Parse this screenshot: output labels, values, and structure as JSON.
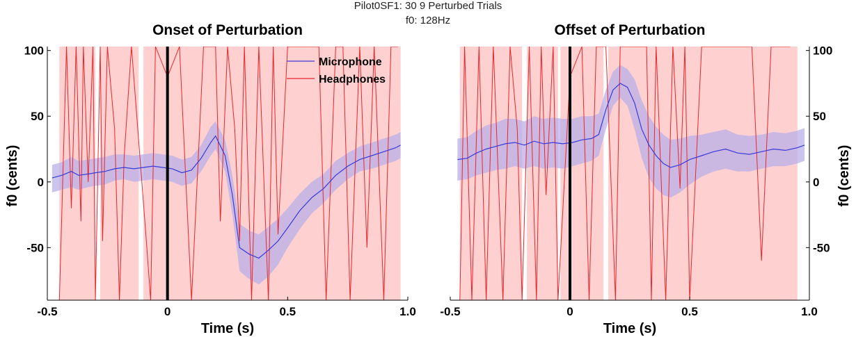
{
  "figure": {
    "suptitle_line1": "Pilot0SF1: 30   9 Perturbed Trials",
    "suptitle_line2": "f0: 128Hz"
  },
  "colors": {
    "headphones_band": "#ffd0d0",
    "headphones_line": "#e8262a",
    "microphone_band": "#b8b0ea",
    "microphone_line": "#3a3ad8",
    "perturbation_marker": "#000000"
  },
  "chart_data": [
    {
      "type": "line",
      "title": "Onset of Perturbation",
      "xlabel": "Time (s)",
      "ylabel": "f0 (cents)",
      "ylabel_side": "left",
      "xlim": [
        -0.5,
        1.0
      ],
      "ylim": [
        -90,
        103
      ],
      "xticks": [
        -0.5,
        0,
        0.5,
        1.0
      ],
      "xtick_labels": [
        "-0.5",
        "0",
        "0.5",
        "1.0"
      ],
      "yticks": [
        100,
        50,
        0,
        -50
      ],
      "ytick_labels": [
        "100",
        "50",
        "0",
        "-50"
      ],
      "marker_x": 0,
      "legend": {
        "position": "top-right",
        "entries": [
          "Microphone",
          "Headphones"
        ]
      },
      "microphone": {
        "name": "Microphone",
        "x": [
          -0.48,
          -0.44,
          -0.4,
          -0.37,
          -0.33,
          -0.3,
          -0.26,
          -0.22,
          -0.18,
          -0.14,
          -0.1,
          -0.06,
          -0.02,
          0.02,
          0.06,
          0.1,
          0.14,
          0.18,
          0.2,
          0.24,
          0.27,
          0.3,
          0.34,
          0.38,
          0.42,
          0.46,
          0.5,
          0.55,
          0.6,
          0.65,
          0.7,
          0.75,
          0.8,
          0.85,
          0.9,
          0.95,
          0.97
        ],
        "y": [
          3,
          5,
          8,
          5,
          6,
          7,
          8,
          10,
          11,
          10,
          11,
          12,
          11,
          10,
          7,
          9,
          18,
          30,
          35,
          20,
          -10,
          -50,
          -55,
          -58,
          -52,
          -45,
          -35,
          -22,
          -12,
          -5,
          5,
          12,
          17,
          20,
          23,
          26,
          28
        ],
        "lower": [
          -8,
          -6,
          -4,
          -6,
          -4,
          -3,
          -2,
          1,
          2,
          0,
          1,
          2,
          1,
          0,
          -3,
          -1,
          8,
          20,
          25,
          8,
          -25,
          -68,
          -74,
          -78,
          -72,
          -63,
          -50,
          -36,
          -24,
          -16,
          -6,
          2,
          8,
          10,
          13,
          16,
          18
        ],
        "upper": [
          13,
          15,
          19,
          16,
          17,
          18,
          19,
          21,
          21,
          20,
          21,
          22,
          21,
          20,
          17,
          19,
          28,
          42,
          46,
          32,
          5,
          -32,
          -37,
          -40,
          -34,
          -28,
          -20,
          -9,
          0,
          6,
          16,
          22,
          27,
          30,
          33,
          36,
          38
        ]
      },
      "headphones": {
        "name": "Headphones",
        "band_segments": [
          [
            -0.45,
            -0.3
          ],
          [
            -0.28,
            -0.12
          ],
          [
            -0.1,
            0.97
          ]
        ],
        "band_top": 103,
        "band_bottom": -90,
        "line_x": [
          -0.45,
          -0.42,
          -0.4,
          -0.38,
          -0.36,
          -0.35,
          -0.33,
          -0.31,
          -0.3,
          -0.28,
          -0.27,
          -0.25,
          -0.22,
          -0.2,
          -0.18,
          -0.15,
          -0.09,
          -0.07,
          -0.05,
          0.0,
          0.05,
          0.1,
          0.15,
          0.2,
          0.22,
          0.25,
          0.28,
          0.3,
          0.32,
          0.35,
          0.38,
          0.42,
          0.44,
          0.46,
          0.5,
          0.55,
          0.57,
          0.6,
          0.63,
          0.66,
          0.7,
          0.73,
          0.76,
          0.8,
          0.83,
          0.86,
          0.9,
          0.93,
          0.96
        ],
        "line_y": [
          -90,
          103,
          -20,
          103,
          -30,
          103,
          0,
          103,
          -90,
          103,
          -45,
          103,
          40,
          -90,
          20,
          103,
          -40,
          -90,
          103,
          80,
          103,
          -90,
          103,
          103,
          -30,
          103,
          40,
          -45,
          103,
          -90,
          103,
          -90,
          103,
          -40,
          103,
          103,
          103,
          103,
          103,
          -90,
          103,
          103,
          -90,
          103,
          -50,
          103,
          -90,
          103,
          103
        ]
      }
    },
    {
      "type": "line",
      "title": "Offset of Perturbation",
      "xlabel": "Time (s)",
      "ylabel": "f0 (cents)",
      "ylabel_side": "right",
      "xlim": [
        -0.5,
        1.0
      ],
      "ylim": [
        -90,
        103
      ],
      "xticks": [
        -0.5,
        0,
        0.5,
        1.0
      ],
      "xtick_labels": [
        "-0.5",
        "0",
        "0.5",
        "1.0"
      ],
      "yticks": [
        100,
        50,
        0,
        -50
      ],
      "ytick_labels": [
        "100",
        "50",
        "0",
        "-50"
      ],
      "marker_x": 0,
      "microphone": {
        "name": "Microphone",
        "x": [
          -0.47,
          -0.43,
          -0.39,
          -0.35,
          -0.31,
          -0.27,
          -0.23,
          -0.19,
          -0.15,
          -0.11,
          -0.07,
          -0.03,
          0.01,
          0.05,
          0.09,
          0.12,
          0.15,
          0.18,
          0.21,
          0.24,
          0.27,
          0.3,
          0.33,
          0.36,
          0.39,
          0.42,
          0.46,
          0.5,
          0.55,
          0.6,
          0.65,
          0.7,
          0.75,
          0.8,
          0.85,
          0.9,
          0.95,
          0.98
        ],
        "y": [
          17,
          18,
          22,
          25,
          27,
          29,
          30,
          28,
          31,
          29,
          30,
          29,
          30,
          32,
          33,
          36,
          55,
          70,
          75,
          72,
          60,
          40,
          28,
          20,
          14,
          11,
          13,
          17,
          20,
          23,
          25,
          22,
          21,
          23,
          25,
          24,
          26,
          28
        ],
        "lower": [
          1,
          2,
          5,
          7,
          9,
          10,
          12,
          10,
          12,
          10,
          11,
          10,
          12,
          14,
          16,
          20,
          40,
          58,
          64,
          58,
          40,
          18,
          3,
          -5,
          -10,
          -12,
          -8,
          -2,
          4,
          8,
          10,
          8,
          8,
          10,
          12,
          12,
          14,
          16
        ],
        "upper": [
          33,
          34,
          39,
          43,
          45,
          48,
          48,
          46,
          50,
          48,
          49,
          48,
          48,
          50,
          50,
          52,
          70,
          84,
          89,
          86,
          78,
          62,
          50,
          42,
          36,
          32,
          33,
          35,
          36,
          38,
          40,
          36,
          35,
          36,
          38,
          37,
          39,
          41
        ]
      },
      "headphones": {
        "name": "Headphones",
        "band_segments": [
          [
            -0.46,
            -0.2
          ],
          [
            -0.18,
            -0.05
          ],
          [
            -0.04,
            0.14
          ],
          [
            0.16,
            0.95
          ]
        ],
        "band_top": 103,
        "band_bottom": -90,
        "line_x": [
          -0.46,
          -0.44,
          -0.41,
          -0.38,
          -0.35,
          -0.32,
          -0.28,
          -0.25,
          -0.22,
          -0.2,
          -0.17,
          -0.14,
          -0.12,
          -0.1,
          -0.07,
          -0.05,
          0.0,
          0.05,
          0.08,
          0.11,
          0.15,
          0.19,
          0.21,
          0.24,
          0.27,
          0.3,
          0.32,
          0.34,
          0.36,
          0.4,
          0.43,
          0.46,
          0.48,
          0.5,
          0.55,
          0.6,
          0.64,
          0.68,
          0.72,
          0.76,
          0.8,
          0.84,
          0.88,
          0.92
        ],
        "line_y": [
          -90,
          103,
          -90,
          103,
          -90,
          103,
          -90,
          103,
          40,
          -90,
          103,
          -90,
          103,
          -10,
          103,
          -90,
          80,
          103,
          -90,
          103,
          103,
          -90,
          103,
          103,
          103,
          103,
          103,
          -90,
          103,
          -90,
          103,
          -5,
          103,
          -90,
          103,
          103,
          103,
          103,
          103,
          103,
          -60,
          103,
          103,
          103
        ]
      }
    }
  ]
}
